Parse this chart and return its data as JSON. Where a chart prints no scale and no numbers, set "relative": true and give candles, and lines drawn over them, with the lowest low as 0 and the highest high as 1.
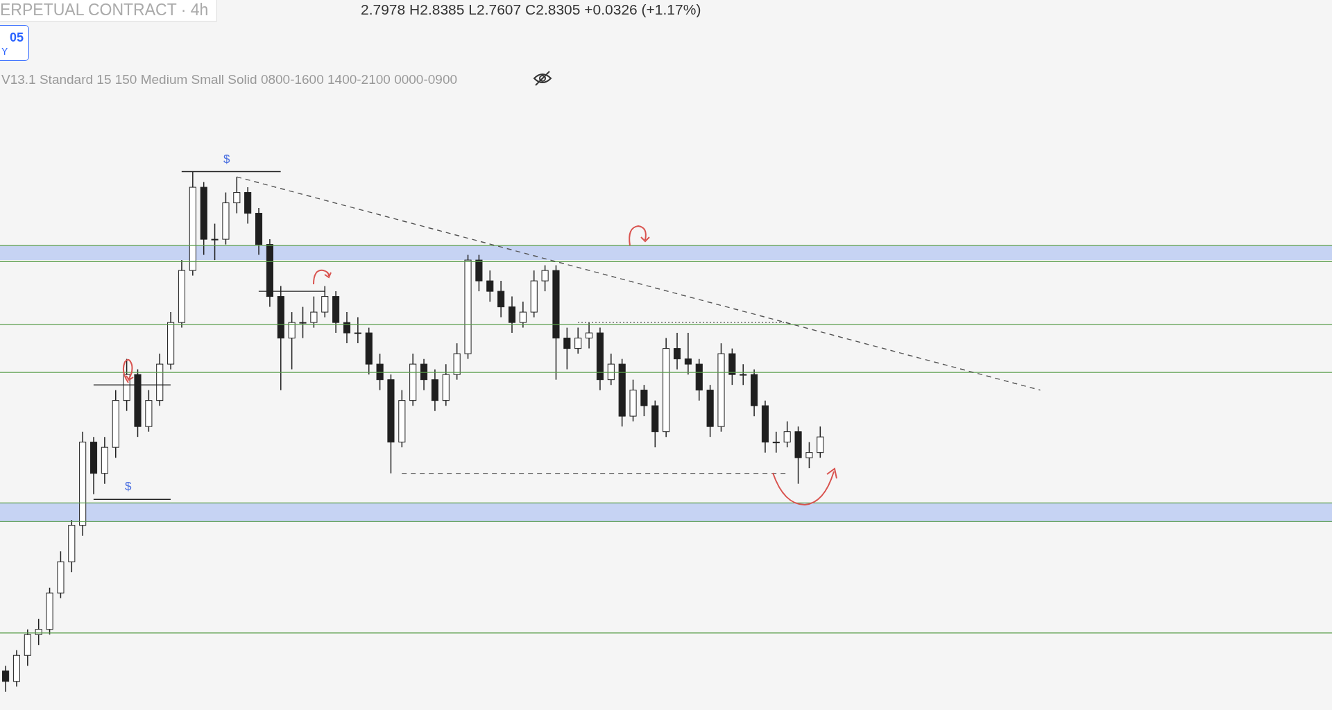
{
  "chart_data": {
    "type": "candlestick",
    "relative": true,
    "title": "ERPETUAL CONTRACT · 4h",
    "subtitle": "2.7978 H2.8385 L2.7607 C2.8305 +0.0326 (+1.17%)",
    "annotations": [
      "05",
      "Y",
      "V13.1 Standard 15 150 Medium Small Solid 0800-1600 1400-2100 0000-0900",
      "$",
      "$"
    ],
    "categories": [
      null,
      null,
      null,
      null,
      null,
      null,
      null,
      null,
      null,
      null,
      null,
      null,
      null,
      null,
      null,
      null,
      null,
      null,
      null,
      null,
      null,
      null,
      null,
      null,
      null,
      null,
      null,
      null,
      null,
      null,
      null,
      null,
      null,
      null,
      null,
      null,
      null,
      null,
      null,
      null,
      null,
      null,
      null,
      null,
      null,
      null,
      null,
      null,
      null,
      null,
      null,
      null,
      null,
      null,
      null,
      null,
      null,
      null,
      null,
      null,
      null,
      null,
      null,
      null,
      null,
      null,
      null,
      null,
      null,
      null,
      null,
      null,
      null,
      null,
      null,
      null,
      null,
      null,
      null,
      null,
      null,
      null,
      null,
      null,
      null,
      null,
      null,
      null,
      null,
      null,
      null,
      null,
      null,
      null,
      null,
      null,
      null,
      null,
      null,
      null,
      null,
      null,
      null,
      null,
      null,
      null,
      null,
      null,
      null,
      null,
      null,
      null,
      null,
      null,
      null,
      null,
      null,
      null,
      null,
      null,
      null
    ],
    "ohlc": [
      [
        0.04,
        0.05,
        0,
        0.02
      ],
      [
        0.02,
        0.08,
        0.01,
        0.07
      ],
      [
        0.07,
        0.12,
        0.05,
        0.11
      ],
      [
        0.11,
        0.14,
        0.09,
        0.12
      ],
      [
        0.12,
        0.2,
        0.11,
        0.19
      ],
      [
        0.19,
        0.27,
        0.18,
        0.25
      ],
      [
        0.25,
        0.33,
        0.23,
        0.32
      ],
      [
        0.32,
        0.5,
        0.3,
        0.48
      ],
      [
        0.48,
        0.49,
        0.38,
        0.42
      ],
      [
        0.42,
        0.49,
        0.4,
        0.47
      ],
      [
        0.47,
        0.58,
        0.45,
        0.56
      ],
      [
        0.56,
        0.64,
        0.54,
        0.61
      ],
      [
        0.61,
        0.62,
        0.49,
        0.51
      ],
      [
        0.51,
        0.58,
        0.5,
        0.56
      ],
      [
        0.56,
        0.65,
        0.55,
        0.63
      ],
      [
        0.63,
        0.73,
        0.62,
        0.71
      ],
      [
        0.71,
        0.83,
        0.7,
        0.81
      ],
      [
        0.81,
        1,
        0.8,
        0.97
      ],
      [
        0.97,
        0.98,
        0.84,
        0.87
      ],
      [
        0.87,
        0.9,
        0.83,
        0.87
      ],
      [
        0.87,
        0.96,
        0.86,
        0.94
      ],
      [
        0.94,
        0.99,
        0.92,
        0.96
      ],
      [
        0.96,
        0.97,
        0.9,
        0.92
      ],
      [
        0.92,
        0.93,
        0.84,
        0.86
      ],
      [
        0.86,
        0.87,
        0.74,
        0.76
      ],
      [
        0.76,
        0.78,
        0.58,
        0.68
      ],
      [
        0.68,
        0.73,
        0.62,
        0.71
      ],
      [
        0.71,
        0.74,
        0.68,
        0.71
      ],
      [
        0.71,
        0.76,
        0.7,
        0.73
      ],
      [
        0.73,
        0.78,
        0.72,
        0.76
      ],
      [
        0.76,
        0.77,
        0.69,
        0.71
      ],
      [
        0.71,
        0.73,
        0.67,
        0.69
      ],
      [
        0.69,
        0.72,
        0.67,
        0.69
      ],
      [
        0.69,
        0.7,
        0.61,
        0.63
      ],
      [
        0.63,
        0.65,
        0.58,
        0.6
      ],
      [
        0.6,
        0.61,
        0.42,
        0.48
      ],
      [
        0.48,
        0.58,
        0.47,
        0.56
      ],
      [
        0.56,
        0.65,
        0.55,
        0.63
      ],
      [
        0.63,
        0.64,
        0.58,
        0.6
      ],
      [
        0.6,
        0.62,
        0.54,
        0.56
      ],
      [
        0.56,
        0.63,
        0.55,
        0.61
      ],
      [
        0.61,
        0.67,
        0.6,
        0.65
      ],
      [
        0.65,
        0.84,
        0.64,
        0.83
      ],
      [
        0.83,
        0.84,
        0.77,
        0.79
      ],
      [
        0.79,
        0.81,
        0.75,
        0.77
      ],
      [
        0.77,
        0.79,
        0.72,
        0.74
      ],
      [
        0.74,
        0.76,
        0.69,
        0.71
      ],
      [
        0.71,
        0.75,
        0.7,
        0.73
      ],
      [
        0.73,
        0.81,
        0.72,
        0.79
      ],
      [
        0.79,
        0.82,
        0.77,
        0.81
      ],
      [
        0.81,
        0.82,
        0.6,
        0.68
      ],
      [
        0.68,
        0.7,
        0.62,
        0.66
      ],
      [
        0.66,
        0.7,
        0.65,
        0.68
      ],
      [
        0.68,
        0.71,
        0.66,
        0.69
      ],
      [
        0.69,
        0.7,
        0.58,
        0.6
      ],
      [
        0.6,
        0.65,
        0.59,
        0.63
      ],
      [
        0.63,
        0.64,
        0.51,
        0.53
      ],
      [
        0.53,
        0.6,
        0.52,
        0.58
      ],
      [
        0.58,
        0.59,
        0.53,
        0.55
      ],
      [
        0.55,
        0.56,
        0.47,
        0.5
      ],
      [
        0.5,
        0.68,
        0.49,
        0.66
      ],
      [
        0.66,
        0.69,
        0.62,
        0.64
      ],
      [
        0.64,
        0.69,
        0.61,
        0.63
      ],
      [
        0.63,
        0.64,
        0.56,
        0.58
      ],
      [
        0.58,
        0.59,
        0.49,
        0.51
      ],
      [
        0.51,
        0.67,
        0.5,
        0.65
      ],
      [
        0.65,
        0.66,
        0.59,
        0.61
      ],
      [
        0.61,
        0.63,
        0.59,
        0.61
      ],
      [
        0.61,
        0.62,
        0.53,
        0.55
      ],
      [
        0.55,
        0.56,
        0.46,
        0.48
      ],
      [
        0.48,
        0.5,
        0.46,
        0.48
      ],
      [
        0.48,
        0.52,
        0.47,
        0.5
      ],
      [
        0.5,
        0.51,
        0.4,
        0.45
      ],
      [
        0.45,
        0.48,
        0.43,
        0.46
      ],
      [
        0.46,
        0.51,
        0.45,
        0.49
      ],
      null,
      null,
      null,
      null,
      null,
      null,
      null,
      null,
      null,
      null,
      null,
      null,
      null,
      null,
      null,
      null,
      null,
      null,
      null,
      null,
      null,
      null,
      null,
      null,
      null,
      null,
      null,
      null,
      null,
      null,
      null,
      null,
      null,
      null,
      null,
      null,
      null,
      null,
      null,
      null,
      null,
      null,
      null,
      null,
      null,
      null
    ],
    "color": "#1f1f1f",
    "series": [
      {
        "type": "line",
        "color": "#555555",
        "line_style": "dashed",
        "values": [
          null,
          null,
          null,
          null,
          null,
          null,
          null,
          null,
          null,
          null,
          null,
          null,
          null,
          null,
          null,
          null,
          null,
          null,
          null,
          null,
          null,
          0.99,
          null,
          null,
          null,
          null,
          null,
          null,
          null,
          null,
          null,
          null,
          null,
          null,
          null,
          null,
          null,
          null,
          null,
          null,
          null,
          null,
          null,
          null,
          null,
          null,
          null,
          null,
          null,
          null,
          null,
          null,
          null,
          null,
          null,
          null,
          null,
          null,
          null,
          null,
          null,
          null,
          null,
          null,
          null,
          null,
          null,
          null,
          null,
          null,
          null,
          null,
          null,
          null,
          null,
          null,
          null,
          null,
          null,
          null,
          null,
          null,
          null,
          null,
          null,
          null,
          null,
          null,
          null,
          null,
          null,
          null,
          null,
          null,
          0.58,
          null,
          null,
          null,
          null,
          null,
          null,
          null,
          null,
          null,
          null,
          null,
          null,
          null,
          null,
          null,
          null,
          null,
          null,
          null,
          null,
          null,
          null,
          null,
          null,
          null,
          null
        ]
      },
      {
        "type": "line",
        "color": "#555555",
        "line_style": "dashed",
        "values": [
          null,
          null,
          null,
          null,
          null,
          null,
          null,
          null,
          null,
          null,
          null,
          null,
          null,
          null,
          null,
          null,
          null,
          null,
          null,
          null,
          null,
          null,
          null,
          null,
          null,
          null,
          null,
          null,
          null,
          null,
          null,
          null,
          null,
          null,
          null,
          null,
          0.42,
          null,
          null,
          null,
          null,
          null,
          null,
          null,
          null,
          null,
          null,
          null,
          null,
          null,
          null,
          null,
          null,
          null,
          null,
          null,
          null,
          null,
          null,
          null,
          null,
          null,
          null,
          null,
          null,
          null,
          null,
          null,
          null,
          null,
          null,
          0.42,
          null,
          null,
          null,
          null,
          null,
          null,
          null,
          null,
          null,
          null,
          null,
          null,
          null,
          null,
          null,
          null,
          null,
          null,
          null,
          null,
          null,
          null,
          null,
          null,
          null,
          null,
          null,
          null,
          null,
          null,
          null,
          null,
          null,
          null,
          null,
          null,
          null,
          null,
          null,
          null,
          null,
          null,
          null,
          null,
          null,
          null,
          null,
          null,
          null
        ]
      },
      {
        "type": "line",
        "color": "#555555",
        "line_style": "dotted",
        "values": [
          null,
          null,
          null,
          null,
          null,
          null,
          null,
          null,
          null,
          null,
          null,
          null,
          null,
          null,
          null,
          null,
          null,
          null,
          null,
          null,
          null,
          null,
          null,
          null,
          null,
          null,
          null,
          null,
          null,
          null,
          null,
          null,
          null,
          null,
          null,
          null,
          null,
          null,
          null,
          null,
          null,
          null,
          null,
          null,
          null,
          null,
          null,
          null,
          null,
          null,
          null,
          null,
          0.71,
          null,
          null,
          null,
          null,
          null,
          null,
          null,
          null,
          null,
          null,
          null,
          null,
          null,
          null,
          null,
          null,
          null,
          null,
          0.71,
          null,
          null,
          null,
          null,
          null,
          null,
          null,
          null,
          null,
          null,
          null,
          null,
          null,
          null,
          null,
          null,
          null,
          null,
          null,
          null,
          null,
          null,
          null,
          null,
          null,
          null,
          null,
          null,
          null,
          null,
          null,
          null,
          null,
          null,
          null,
          null,
          null,
          null,
          null,
          null,
          null,
          null,
          null,
          null,
          null,
          null,
          null,
          null,
          null
        ]
      },
      {
        "type": "line",
        "color": "#222222",
        "line_style": "solid",
        "values": [
          null,
          null,
          null,
          null,
          null,
          null,
          null,
          null,
          null,
          null,
          null,
          null,
          null,
          null,
          null,
          null,
          1,
          null,
          null,
          null,
          null,
          null,
          null,
          null,
          null,
          1,
          null,
          null,
          null,
          null,
          null,
          null,
          null,
          null,
          null,
          null,
          null,
          null,
          null,
          null,
          null,
          null,
          null,
          null,
          null,
          null,
          null,
          null,
          null,
          null,
          null,
          null,
          null,
          null,
          null,
          null,
          null,
          null,
          null,
          null,
          null,
          null,
          null,
          null,
          null,
          null,
          null,
          null,
          null,
          null,
          null,
          null,
          null,
          null,
          null,
          null,
          null,
          null,
          null,
          null,
          null,
          null,
          null,
          null,
          null,
          null,
          null,
          null,
          null,
          null,
          null,
          null,
          null,
          null,
          null,
          null,
          null,
          null,
          null,
          null,
          null,
          null,
          null,
          null,
          null,
          null,
          null,
          null,
          null,
          null,
          null,
          null,
          null,
          null,
          null,
          null,
          null,
          null,
          null,
          null,
          null
        ]
      },
      {
        "type": "line",
        "color": "#222222",
        "line_style": "solid",
        "values": [
          null,
          null,
          null,
          null,
          null,
          null,
          null,
          null,
          null,
          null,
          null,
          null,
          null,
          null,
          null,
          null,
          null,
          null,
          null,
          null,
          null,
          null,
          null,
          0.77,
          null,
          null,
          null,
          null,
          null,
          0.77,
          null,
          null,
          null,
          null,
          null,
          null,
          null,
          null,
          null,
          null,
          null,
          null,
          null,
          null,
          null,
          null,
          null,
          null,
          null,
          null,
          null,
          null,
          null,
          null,
          null,
          null,
          null,
          null,
          null,
          null,
          null,
          null,
          null,
          null,
          null,
          null,
          null,
          null,
          null,
          null,
          null,
          null,
          null,
          null,
          null,
          null,
          null,
          null,
          null,
          null,
          null,
          null,
          null,
          null,
          null,
          null,
          null,
          null,
          null,
          null,
          null,
          null,
          null,
          null,
          null,
          null,
          null,
          null,
          null,
          null,
          null,
          null,
          null,
          null,
          null,
          null,
          null,
          null,
          null,
          null,
          null,
          null,
          null,
          null,
          null,
          null,
          null,
          null,
          null,
          null,
          null
        ]
      },
      {
        "type": "line",
        "color": "#222222",
        "line_style": "solid",
        "values": [
          null,
          null,
          null,
          null,
          null,
          null,
          null,
          null,
          0.59,
          null,
          null,
          null,
          null,
          null,
          null,
          0.59,
          null,
          null,
          null,
          null,
          null,
          null,
          null,
          null,
          null,
          null,
          null,
          null,
          null,
          null,
          null,
          null,
          null,
          null,
          null,
          null,
          null,
          null,
          null,
          null,
          null,
          null,
          null,
          null,
          null,
          null,
          null,
          null,
          null,
          null,
          null,
          null,
          null,
          null,
          null,
          null,
          null,
          null,
          null,
          null,
          null,
          null,
          null,
          null,
          null,
          null,
          null,
          null,
          null,
          null,
          null,
          null,
          null,
          null,
          null,
          null,
          null,
          null,
          null,
          null,
          null,
          null,
          null,
          null,
          null,
          null,
          null,
          null,
          null,
          null,
          null,
          null,
          null,
          null,
          null,
          null,
          null,
          null,
          null,
          null,
          null,
          null,
          null,
          null,
          null,
          null,
          null,
          null,
          null,
          null,
          null,
          null,
          null,
          null,
          null,
          null,
          null,
          null,
          null,
          null,
          null
        ]
      },
      {
        "type": "line",
        "color": "#222222",
        "line_style": "solid",
        "values": [
          null,
          null,
          null,
          null,
          null,
          null,
          null,
          null,
          0.37,
          null,
          null,
          null,
          null,
          null,
          null,
          0.37,
          null,
          null,
          null,
          null,
          null,
          null,
          null,
          null,
          null,
          null,
          null,
          null,
          null,
          null,
          null,
          null,
          null,
          null,
          null,
          null,
          null,
          null,
          null,
          null,
          null,
          null,
          null,
          null,
          null,
          null,
          null,
          null,
          null,
          null,
          null,
          null,
          null,
          null,
          null,
          null,
          null,
          null,
          null,
          null,
          null,
          null,
          null,
          null,
          null,
          null,
          null,
          null,
          null,
          null,
          null,
          null,
          null,
          null,
          null,
          null,
          null,
          null,
          null,
          null,
          null,
          null,
          null,
          null,
          null,
          null,
          null,
          null,
          null,
          null,
          null,
          null,
          null,
          null,
          null,
          null,
          null,
          null,
          null,
          null,
          null,
          null,
          null,
          null,
          null,
          null,
          null,
          null,
          null,
          null,
          null,
          null,
          null,
          null,
          null,
          null,
          null,
          null,
          null,
          null,
          null
        ]
      }
    ],
    "ref_lines": [
      {
        "axis": "y",
        "value": 0.858,
        "color": "#5a9e4b"
      },
      {
        "axis": "y",
        "value": 0.827,
        "color": "#5a9e4b"
      },
      {
        "axis": "y",
        "value": 0.706,
        "color": "#5a9e4b"
      },
      {
        "axis": "y",
        "value": 0.614,
        "color": "#5a9e4b"
      },
      {
        "axis": "y",
        "value": 0.363,
        "color": "#5a9e4b"
      },
      {
        "axis": "y",
        "value": 0.327,
        "color": "#5a9e4b"
      },
      {
        "axis": "y",
        "value": 0.113,
        "color": "#5a9e4b"
      }
    ],
    "bands": [
      {
        "axis": "y",
        "from": 0.83,
        "to": 0.858,
        "color": "#c6d3f3"
      },
      {
        "axis": "y",
        "from": 0.327,
        "to": 0.363,
        "color": "#c6d3f3"
      }
    ]
  }
}
